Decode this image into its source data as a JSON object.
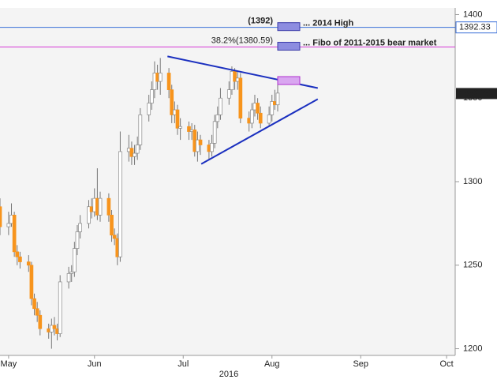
{
  "chart_data": {
    "type": "candlestick",
    "x": [
      13,
      16,
      17,
      18,
      19,
      20,
      23,
      24,
      25,
      26,
      27,
      30,
      31,
      32,
      33,
      34,
      37,
      38,
      39,
      40,
      41,
      44,
      45,
      46,
      47,
      48,
      51,
      52,
      53,
      54,
      55,
      58,
      59,
      60,
      61,
      62,
      65,
      66,
      67,
      68,
      69,
      72,
      73,
      74,
      75,
      76,
      79,
      80,
      81,
      82,
      83,
      86,
      87,
      88,
      89,
      90,
      93,
      94,
      95,
      96,
      97,
      100,
      101,
      102,
      103,
      104,
      107,
      108,
      109,
      110
    ],
    "open": [
      1285,
      1273,
      1275,
      1280,
      1258,
      1255,
      1252,
      1250,
      1230,
      1224,
      1220,
      1212,
      1210,
      1214,
      1212,
      1209,
      1240,
      1245,
      1246,
      1260,
      1270,
      1275,
      1285,
      1282,
      1290,
      1280,
      1290,
      1280,
      1268,
      1266,
      1255,
      1318,
      1320,
      1315,
      1317,
      1322,
      1340,
      1347,
      1355,
      1365,
      1360,
      1365,
      1355,
      1340,
      1343,
      1332,
      1333,
      1330,
      1331,
      1318,
      1325,
      1322,
      1318,
      1323,
      1336,
      1340,
      1350,
      1355,
      1366,
      1360,
      1362,
      1338,
      1335,
      1343,
      1347,
      1341,
      1335,
      1340,
      1348,
      1346
    ],
    "high": [
      1290,
      1282,
      1287,
      1282,
      1262,
      1258,
      1256,
      1252,
      1233,
      1228,
      1223,
      1215,
      1218,
      1219,
      1215,
      1244,
      1249,
      1250,
      1264,
      1274,
      1280,
      1289,
      1290,
      1296,
      1308,
      1294,
      1293,
      1283,
      1272,
      1269,
      1330,
      1328,
      1324,
      1322,
      1327,
      1344,
      1352,
      1360,
      1372,
      1370,
      1374,
      1368,
      1358,
      1348,
      1346,
      1338,
      1336,
      1335,
      1334,
      1330,
      1328,
      1325,
      1328,
      1340,
      1345,
      1356,
      1360,
      1369,
      1368,
      1366,
      1365,
      1342,
      1347,
      1352,
      1350,
      1345,
      1345,
      1352,
      1355,
      1358
    ],
    "low": [
      1268,
      1268,
      1273,
      1255,
      1250,
      1248,
      1246,
      1226,
      1220,
      1216,
      1208,
      1206,
      1200,
      1208,
      1205,
      1207,
      1236,
      1240,
      1243,
      1256,
      1266,
      1272,
      1278,
      1279,
      1277,
      1276,
      1276,
      1264,
      1262,
      1250,
      1252,
      1312,
      1310,
      1310,
      1313,
      1319,
      1336,
      1343,
      1350,
      1355,
      1352,
      1350,
      1335,
      1335,
      1328,
      1325,
      1325,
      1325,
      1315,
      1312,
      1316,
      1313,
      1315,
      1320,
      1332,
      1337,
      1346,
      1352,
      1355,
      1355,
      1335,
      1330,
      1332,
      1339,
      1337,
      1332,
      1333,
      1336,
      1343,
      1342
    ],
    "close": [
      1273,
      1275,
      1280,
      1258,
      1255,
      1252,
      1250,
      1230,
      1224,
      1220,
      1212,
      1210,
      1214,
      1212,
      1209,
      1240,
      1245,
      1246,
      1260,
      1270,
      1275,
      1285,
      1282,
      1290,
      1280,
      1290,
      1280,
      1268,
      1266,
      1255,
      1318,
      1320,
      1315,
      1317,
      1322,
      1340,
      1347,
      1355,
      1365,
      1360,
      1365,
      1355,
      1340,
      1343,
      1332,
      1333,
      1330,
      1331,
      1318,
      1325,
      1322,
      1318,
      1323,
      1336,
      1340,
      1350,
      1355,
      1366,
      1360,
      1362,
      1338,
      1335,
      1343,
      1347,
      1341,
      1335,
      1340,
      1348,
      1346,
      1353
    ],
    "up_color": "#ffffff",
    "down_color": "#f7941d",
    "xlim": [
      13,
      172
    ],
    "xticks": [
      {
        "value": 16,
        "label": "May"
      },
      {
        "value": 46,
        "label": "Jun"
      },
      {
        "value": 77,
        "label": "Jul"
      },
      {
        "value": 108,
        "label": "Aug"
      },
      {
        "value": 139,
        "label": "Sep"
      },
      {
        "value": 169,
        "label": "Oct"
      }
    ],
    "xlabel": "2016",
    "ylim": [
      1196,
      1404
    ],
    "yticks": [
      1200,
      1250,
      1300,
      1350,
      1400
    ],
    "levels": [
      {
        "value": 1392.33,
        "label": "(1392)",
        "note": "... 2014 High",
        "color": "#3a6fd8"
      },
      {
        "value": 1380.59,
        "label": "38.2%(1380.59)",
        "note": "... Fibo of 2011-2015 bear market",
        "color": "#d63ad6"
      }
    ],
    "last_price": 1352.75,
    "trendlines": [
      {
        "x": [
          71.5,
          124
        ],
        "y": [
          1375,
          1356
        ],
        "color": "#1a2fbf"
      },
      {
        "x": [
          83.3,
          124
        ],
        "y": [
          1310.6,
          1349.4
        ],
        "color": "#1a2fbf"
      }
    ]
  }
}
